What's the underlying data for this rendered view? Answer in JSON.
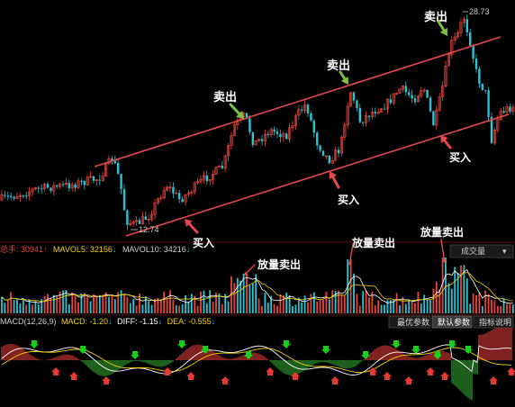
{
  "colors": {
    "up": "#e8453c",
    "down": "#29c6d6",
    "channel": "#e5484d",
    "buy_arrow": "#e5484d",
    "sell_arrow": "#7ac143",
    "ma5": "#ffffff",
    "ma10": "#f2d200",
    "diff": "#ffffff",
    "dea": "#f2d200",
    "hist_pos": "#d43a34",
    "hist_neg": "#2fa02f",
    "green_marker": "#18d018",
    "red_marker": "#e53935"
  },
  "chart_data": {
    "type": "candlestick",
    "price_labels": {
      "high": "28.73",
      "low": "12.74"
    },
    "annotations": {
      "sell": "卖出",
      "buy": "买入",
      "volume_sell": "放量卖出"
    },
    "volume_header": {
      "total": "总手: 30941",
      "mavol5": "MAVOL5: 32156",
      "mavol10": "MAVOL10: 34216",
      "dropdown": "成交量"
    },
    "macd_header": {
      "title": "MACD(12,26,9)",
      "macd": "MACD: -1.20",
      "diff": "DIFF: -1.15",
      "dea": "DEA: -0.555"
    },
    "macd_buttons": [
      "最优参数",
      "默认参数",
      "指标说明"
    ]
  },
  "icons": {
    "up_arrow": "↑",
    "down_arrow": "↓",
    "dropdown": "▾"
  }
}
